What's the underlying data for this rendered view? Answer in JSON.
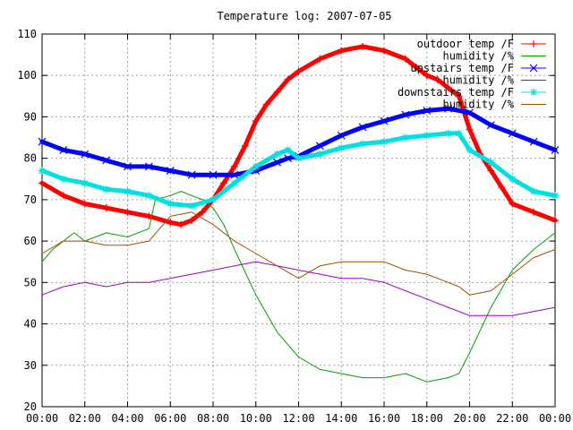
{
  "chart_data": {
    "type": "line",
    "title": "Temperature log: 2007-07-05",
    "xlabel": "",
    "ylabel": "",
    "xlim": [
      0,
      24
    ],
    "ylim": [
      20,
      110
    ],
    "grid": true,
    "legend_position": "top-right",
    "x_ticks": [
      "00:00",
      "02:00",
      "04:00",
      "06:00",
      "08:00",
      "10:00",
      "12:00",
      "14:00",
      "16:00",
      "18:00",
      "20:00",
      "22:00",
      "00:00"
    ],
    "y_ticks": [
      "20",
      "30",
      "40",
      "50",
      "60",
      "70",
      "80",
      "90",
      "100",
      "110"
    ],
    "series": [
      {
        "name": "outdoor temp /F",
        "color": "#ff0000",
        "marker": "plus",
        "x": [
          0,
          1,
          2,
          3,
          4,
          5,
          6,
          6.5,
          7,
          7.5,
          8,
          8.5,
          9,
          9.5,
          10,
          10.5,
          11,
          11.5,
          12,
          13,
          14,
          15,
          16,
          17,
          17.5,
          18,
          18.5,
          19,
          19.5,
          20,
          20.5,
          21,
          21.5,
          22,
          23,
          24
        ],
        "values": [
          74,
          71,
          69,
          68,
          67,
          66,
          64.5,
          64,
          65,
          67,
          70,
          74,
          78,
          83,
          89,
          93,
          96,
          99,
          101,
          104,
          106,
          107,
          106,
          104,
          102,
          100,
          99,
          97,
          95,
          87,
          81,
          77,
          73,
          69,
          67,
          65
        ]
      },
      {
        "name": "humidity /%",
        "color": "#00a000",
        "marker": "none",
        "x": [
          0,
          0.5,
          1,
          1.5,
          2,
          2.5,
          3,
          4,
          5,
          5.3,
          6,
          6.5,
          7,
          7.5,
          8,
          8.5,
          9,
          10,
          11,
          12,
          13,
          14,
          15,
          16,
          17,
          18,
          19,
          19.5,
          20,
          21,
          22,
          23,
          24
        ],
        "values": [
          55,
          58,
          60,
          62,
          60,
          61,
          62,
          61,
          63,
          70,
          71,
          72,
          71,
          70,
          68,
          64,
          58,
          47,
          38,
          32,
          29,
          28,
          27,
          27,
          28,
          26,
          27,
          28,
          33,
          44,
          53,
          58,
          62
        ]
      },
      {
        "name": "upstairs temp /F",
        "color": "#0000ff",
        "marker": "cross",
        "x": [
          0,
          1,
          2,
          3,
          4,
          5,
          6,
          7,
          8,
          9,
          10,
          11,
          11.5,
          12,
          13,
          14,
          15,
          16,
          17,
          18,
          19,
          20,
          21,
          22,
          23,
          24
        ],
        "values": [
          84,
          82,
          81,
          79.5,
          78,
          78,
          77,
          76,
          76,
          76,
          77,
          79,
          80,
          80.5,
          83,
          85.5,
          87.5,
          89,
          90.5,
          91.5,
          92,
          91,
          88,
          86,
          84,
          82
        ]
      },
      {
        "name": "humidity /%",
        "color": "#a000c0",
        "marker": "none",
        "x": [
          0,
          1,
          2,
          3,
          4,
          5,
          6,
          7,
          8,
          9,
          10,
          11,
          12,
          13,
          14,
          15,
          16,
          17,
          18,
          19,
          20,
          21,
          22,
          23,
          24
        ],
        "values": [
          47,
          49,
          50,
          49,
          50,
          50,
          51,
          52,
          53,
          54,
          55,
          54,
          53,
          52,
          51,
          51,
          50,
          48,
          46,
          44,
          42,
          42,
          42,
          43,
          44
        ]
      },
      {
        "name": "downstairs temp /F",
        "color": "#00e0e0",
        "marker": "star",
        "x": [
          0,
          1,
          2,
          3,
          4,
          5,
          6,
          7,
          8,
          9,
          10,
          11,
          11.5,
          12,
          13,
          14,
          15,
          16,
          17,
          18,
          19,
          19.5,
          20,
          21,
          22,
          23,
          24
        ],
        "values": [
          77,
          75,
          74,
          72.5,
          72,
          71,
          69,
          68.5,
          70,
          74,
          78,
          81,
          82,
          80,
          81,
          82.5,
          83.5,
          84,
          85,
          85.5,
          86,
          86,
          82,
          79,
          75,
          72,
          71
        ]
      },
      {
        "name": "humidity /%",
        "color": "#a05000",
        "marker": "none",
        "x": [
          0,
          1,
          2,
          3,
          4,
          5,
          6,
          7,
          8,
          9,
          10,
          11,
          12,
          13,
          14,
          15,
          16,
          17,
          18,
          19,
          19.5,
          20,
          21,
          22,
          23,
          24
        ],
        "values": [
          57,
          60,
          60,
          59,
          59,
          60,
          66,
          67,
          64,
          60,
          57,
          54,
          51,
          54,
          55,
          55,
          55,
          53,
          52,
          50,
          49,
          47,
          48,
          52,
          56,
          58
        ]
      }
    ]
  }
}
